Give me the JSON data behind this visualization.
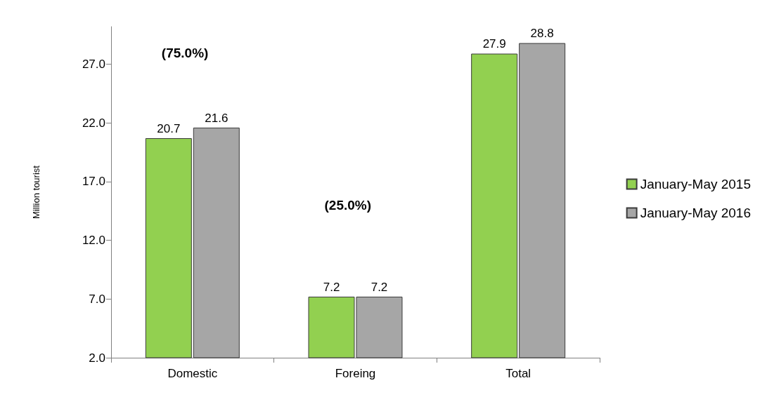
{
  "chart_data": {
    "type": "bar",
    "ylabel": "Million tourist",
    "categories": [
      "Domestic",
      "Foreing",
      "Total"
    ],
    "series": [
      {
        "name": "January-May 2015",
        "color": "#92d050",
        "values": [
          20.7,
          7.2,
          27.9
        ]
      },
      {
        "name": "January-May 2016",
        "color": "#a6a6a6",
        "values": [
          21.6,
          7.2,
          28.8
        ]
      }
    ],
    "ylim": [
      2,
      30.2
    ],
    "yticks": [
      {
        "value": 2,
        "label": "2.0"
      },
      {
        "value": 7,
        "label": "7.0"
      },
      {
        "value": 12,
        "label": "12.0"
      },
      {
        "value": 17,
        "label": "17.0"
      },
      {
        "value": 22,
        "label": "22.0"
      },
      {
        "value": 27,
        "label": "27.0"
      }
    ],
    "annotations": [
      "(75.0%)",
      "(25.0%)"
    ],
    "data_labels": true,
    "grid": false,
    "legend": "right"
  }
}
